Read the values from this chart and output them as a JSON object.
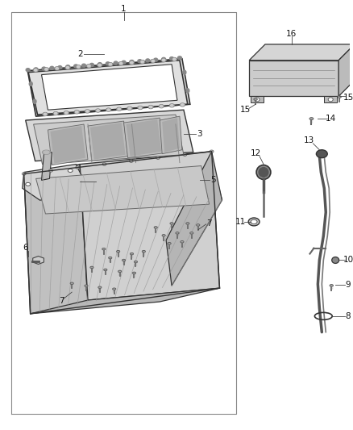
{
  "bg_color": "#ffffff",
  "border_color": "#555555",
  "label_color": "#111111",
  "fig_width": 4.38,
  "fig_height": 5.33,
  "dpi": 100,
  "line_color": "#333333",
  "light_gray": "#c8c8c8",
  "mid_gray": "#999999",
  "dark_gray": "#555555"
}
